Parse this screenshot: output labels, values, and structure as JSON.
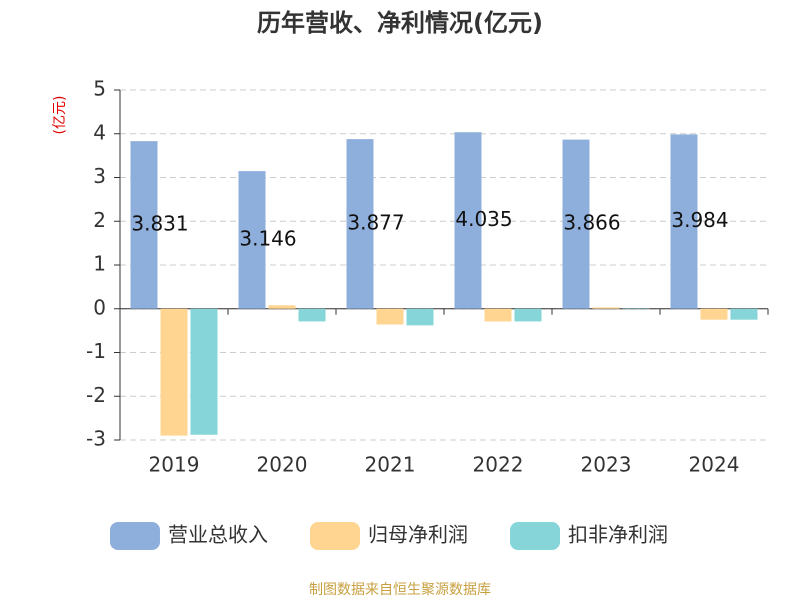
{
  "chart_data": {
    "type": "bar",
    "title": "历年营收、净利情况(亿元)",
    "y_label": "(亿元)",
    "categories": [
      "2019",
      "2020",
      "2021",
      "2022",
      "2023",
      "2024"
    ],
    "series": [
      {
        "name": "营业总收入",
        "color": "#8eaedb",
        "values": [
          3.831,
          3.146,
          3.877,
          4.035,
          3.866,
          3.984
        ],
        "show_labels": true
      },
      {
        "name": "归母净利润",
        "color": "#ffd591",
        "values": [
          -2.9,
          0.08,
          -0.36,
          -0.29,
          0.03,
          -0.25
        ]
      },
      {
        "name": "扣非净利润",
        "color": "#86d5d8",
        "values": [
          -2.88,
          -0.29,
          -0.38,
          -0.29,
          0.01,
          -0.25
        ]
      }
    ],
    "ylim": [
      -3,
      5
    ],
    "yticks": [
      -3,
      -2,
      -1,
      0,
      1,
      2,
      3,
      4,
      5
    ],
    "grid": true,
    "legend": "bottom",
    "source": "制图数据来自恒生聚源数据库"
  }
}
